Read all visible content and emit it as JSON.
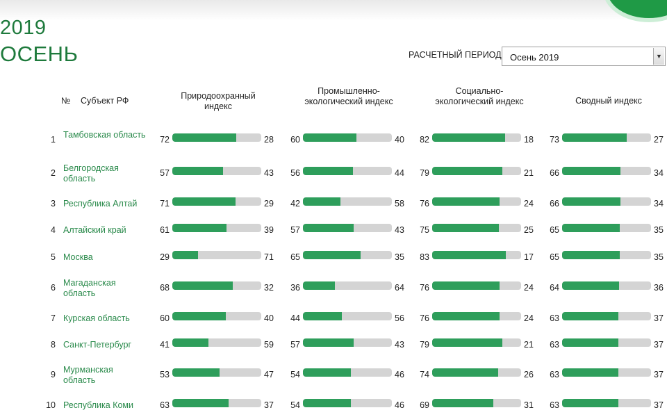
{
  "header": {
    "year": "2019",
    "season": "ОСЕНЬ",
    "period_label": "РАСЧЕТНЫЙ ПЕРИОД",
    "period_selected": "Осень 2019"
  },
  "table": {
    "columns": {
      "number": "№",
      "subject": "Субъект РФ",
      "c1": "Природоохранный индекс",
      "c2": "Промышленно-экологический индекс",
      "c3": "Социально-экологический индекс",
      "c4": "Сводный индекс"
    },
    "rows": [
      {
        "rank": "1",
        "name": "Тамбовская область",
        "c1": [
          72,
          28
        ],
        "c2": [
          60,
          40
        ],
        "c3": [
          82,
          18
        ],
        "c4": [
          73,
          27
        ]
      },
      {
        "rank": "2",
        "name": "Белгородская область",
        "c1": [
          57,
          43
        ],
        "c2": [
          56,
          44
        ],
        "c3": [
          79,
          21
        ],
        "c4": [
          66,
          34
        ]
      },
      {
        "rank": "3",
        "name": "Республика Алтай",
        "c1": [
          71,
          29
        ],
        "c2": [
          42,
          58
        ],
        "c3": [
          76,
          24
        ],
        "c4": [
          66,
          34
        ]
      },
      {
        "rank": "4",
        "name": "Алтайский край",
        "c1": [
          61,
          39
        ],
        "c2": [
          57,
          43
        ],
        "c3": [
          75,
          25
        ],
        "c4": [
          65,
          35
        ]
      },
      {
        "rank": "5",
        "name": "Москва",
        "c1": [
          29,
          71
        ],
        "c2": [
          65,
          35
        ],
        "c3": [
          83,
          17
        ],
        "c4": [
          65,
          35
        ]
      },
      {
        "rank": "6",
        "name": "Магаданская область",
        "c1": [
          68,
          32
        ],
        "c2": [
          36,
          64
        ],
        "c3": [
          76,
          24
        ],
        "c4": [
          64,
          36
        ]
      },
      {
        "rank": "7",
        "name": "Курская область",
        "c1": [
          60,
          40
        ],
        "c2": [
          44,
          56
        ],
        "c3": [
          76,
          24
        ],
        "c4": [
          63,
          37
        ]
      },
      {
        "rank": "8",
        "name": "Санкт-Петербург",
        "c1": [
          41,
          59
        ],
        "c2": [
          57,
          43
        ],
        "c3": [
          79,
          21
        ],
        "c4": [
          63,
          37
        ]
      },
      {
        "rank": "9",
        "name": "Мурманская область",
        "c1": [
          53,
          47
        ],
        "c2": [
          54,
          46
        ],
        "c3": [
          74,
          26
        ],
        "c4": [
          63,
          37
        ]
      },
      {
        "rank": "10",
        "name": "Республика Коми",
        "c1": [
          63,
          37
        ],
        "c2": [
          54,
          46
        ],
        "c3": [
          69,
          31
        ],
        "c4": [
          63,
          37
        ]
      }
    ]
  },
  "colors": {
    "accent": "#1e7a3c",
    "bar_fill": "#2e9e5b",
    "bar_track": "#d4d4d4",
    "link": "#2a8a4b"
  }
}
